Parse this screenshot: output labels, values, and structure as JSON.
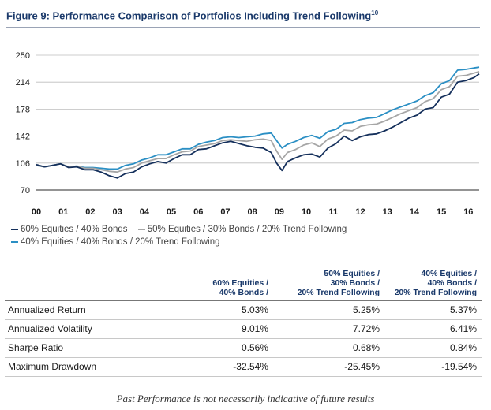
{
  "figure": {
    "title": "Figure 9: Performance Comparison of Portfolios Including Trend Following",
    "title_superscript": "10"
  },
  "chart_data": {
    "type": "line",
    "title": "Figure 9: Performance Comparison of Portfolios Including Trend Following",
    "xlabel": "",
    "ylabel": "",
    "x_ticks": [
      "00",
      "01",
      "02",
      "03",
      "04",
      "05",
      "06",
      "07",
      "08",
      "09",
      "10",
      "11",
      "12",
      "13",
      "14",
      "15",
      "16"
    ],
    "y_ticks": [
      70,
      106,
      142,
      178,
      214,
      250
    ],
    "xlim": [
      2000,
      2016.4
    ],
    "ylim": [
      70,
      250
    ],
    "grid": "horizontal",
    "x": [
      2000.0,
      2000.3,
      2000.6,
      2000.9,
      2001.2,
      2001.5,
      2001.8,
      2002.1,
      2002.4,
      2002.7,
      2003.0,
      2003.3,
      2003.6,
      2003.9,
      2004.2,
      2004.5,
      2004.8,
      2005.1,
      2005.4,
      2005.7,
      2006.0,
      2006.3,
      2006.6,
      2006.9,
      2007.2,
      2007.5,
      2007.8,
      2008.1,
      2008.4,
      2008.7,
      2008.9,
      2009.1,
      2009.3,
      2009.6,
      2009.9,
      2010.2,
      2010.5,
      2010.8,
      2011.1,
      2011.4,
      2011.7,
      2012.0,
      2012.3,
      2012.6,
      2012.9,
      2013.2,
      2013.5,
      2013.8,
      2014.1,
      2014.4,
      2014.7,
      2015.0,
      2015.3,
      2015.6,
      2015.9,
      2016.2,
      2016.4
    ],
    "series": [
      {
        "name": "60% Equities / 40% Bonds",
        "color": "#15305c",
        "values": [
          104,
          101,
          103,
          105,
          100,
          101,
          97,
          97,
          94,
          89,
          86,
          92,
          94,
          101,
          105,
          108,
          106,
          112,
          117,
          117,
          124,
          125,
          129,
          133,
          135,
          132,
          129,
          127,
          126,
          120,
          106,
          96,
          108,
          113,
          117,
          118,
          114,
          126,
          132,
          142,
          136,
          141,
          144,
          145,
          149,
          154,
          160,
          166,
          170,
          178,
          180,
          194,
          198,
          214,
          216,
          220,
          225
        ]
      },
      {
        "name": "50% Equities / 30% Bonds / 20% Trend Following",
        "color": "#a6a6a6",
        "values": [
          103,
          101,
          103,
          105,
          101,
          102,
          99,
          99,
          97,
          95,
          94,
          98,
          100,
          106,
          109,
          112,
          112,
          117,
          121,
          122,
          128,
          130,
          132,
          136,
          137,
          136,
          135,
          137,
          138,
          136,
          122,
          111,
          120,
          124,
          130,
          133,
          128,
          138,
          142,
          150,
          149,
          155,
          157,
          158,
          162,
          167,
          172,
          176,
          180,
          188,
          192,
          204,
          208,
          222,
          223,
          226,
          228
        ]
      },
      {
        "name": "40% Equities / 40% Bonds / 20% Trend Following",
        "color": "#2b8fc4",
        "values": [
          103,
          101,
          103,
          105,
          101,
          102,
          100,
          100,
          99,
          98,
          98,
          103,
          105,
          110,
          113,
          117,
          117,
          121,
          125,
          125,
          131,
          134,
          136,
          140,
          141,
          140,
          141,
          142,
          145,
          146,
          136,
          126,
          131,
          135,
          140,
          143,
          139,
          148,
          151,
          159,
          160,
          164,
          166,
          167,
          172,
          177,
          181,
          185,
          189,
          196,
          200,
          212,
          216,
          230,
          231,
          233,
          234
        ]
      }
    ]
  },
  "legend": {
    "s1": "60% Equities / 40% Bonds",
    "s2": "50% Equities / 30% Bonds / 20% Trend Following",
    "s3": "40% Equities / 40% Bonds / 20% Trend Following"
  },
  "table": {
    "headers": [
      [
        "60% Equities /",
        "40% Bonds /"
      ],
      [
        "50% Equities /",
        "30% Bonds /",
        "20% Trend Following"
      ],
      [
        "40% Equities /",
        "40% Bonds /",
        "20% Trend Following"
      ]
    ],
    "rows": [
      {
        "label": "Annualized Return",
        "values": [
          "5.03%",
          "5.25%",
          "5.37%"
        ]
      },
      {
        "label": "Annualized Volatility",
        "values": [
          "9.01%",
          "7.72%",
          "6.41%"
        ]
      },
      {
        "label": "Sharpe Ratio",
        "values": [
          "0.56%",
          "0.68%",
          "0.84%"
        ]
      },
      {
        "label": "Maximum Drawdown",
        "values": [
          "-32.54%",
          "-25.45%",
          "-19.54%"
        ]
      }
    ]
  },
  "footnote": "Past Performance is not necessarily indicative of future results"
}
